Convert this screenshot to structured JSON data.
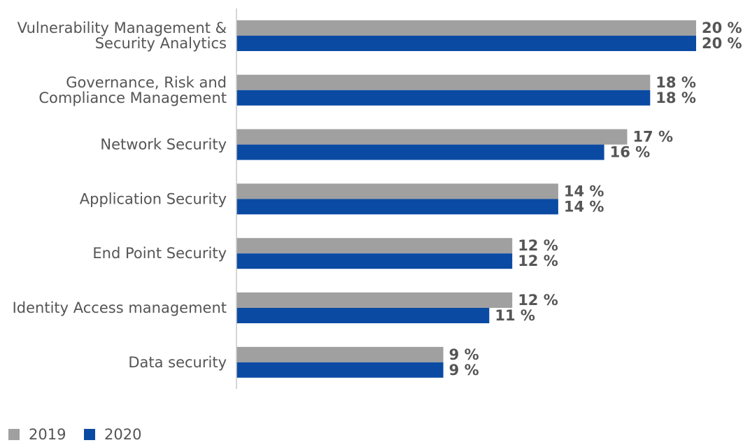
{
  "chart_data": {
    "type": "bar",
    "orientation": "horizontal",
    "categories": [
      [
        "Vulnerability Management &",
        "Security Analytics"
      ],
      [
        "Governance, Risk and",
        "Compliance Management"
      ],
      [
        "Network Security"
      ],
      [
        "Application Security"
      ],
      [
        "End Point Security"
      ],
      [
        "Identity Access management"
      ],
      [
        "Data security"
      ]
    ],
    "series": [
      {
        "name": "2019",
        "color": "#a0a0a0",
        "values": [
          20,
          18,
          17,
          14,
          12,
          12,
          9
        ],
        "labels": [
          "20 %",
          "18 %",
          "17 %",
          "14 %",
          "12 %",
          "12 %",
          "9 %"
        ]
      },
      {
        "name": "2020",
        "color": "#0a4aa3",
        "values": [
          20,
          18,
          16,
          14,
          12,
          11,
          9
        ],
        "labels": [
          "20 %",
          "18 %",
          "16 %",
          "14 %",
          "12 %",
          "11 %",
          "9 %"
        ]
      }
    ],
    "value_unit": "%",
    "xlim": [
      0,
      20
    ],
    "grid": false,
    "legend_position": "bottom-left",
    "title": "",
    "xlabel": "",
    "ylabel": ""
  }
}
